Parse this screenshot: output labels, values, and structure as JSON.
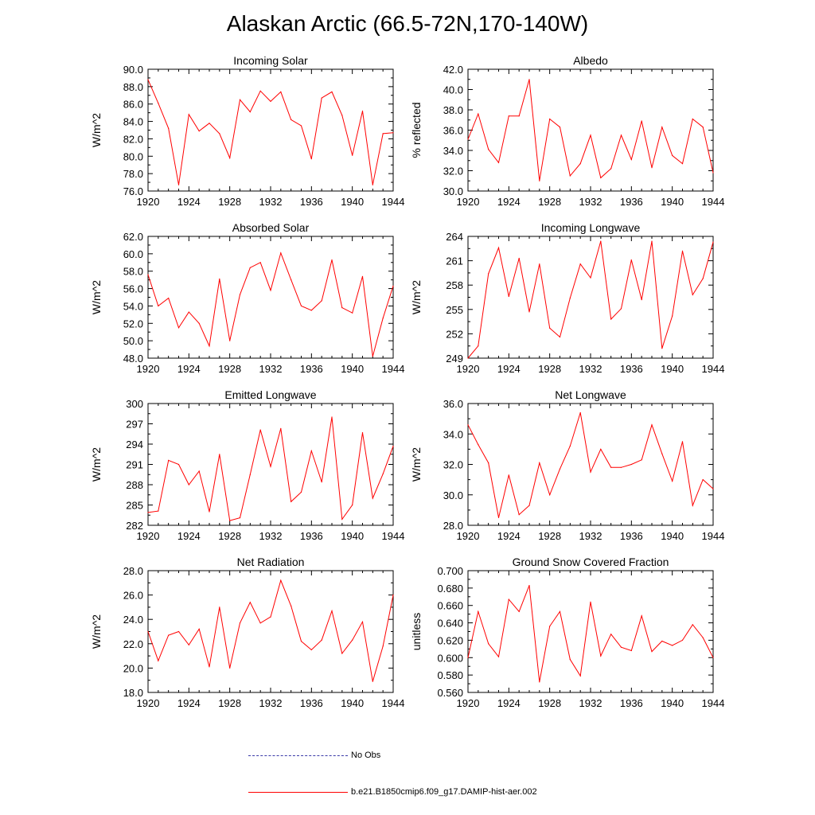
{
  "title": "Alaskan Arctic (66.5-72N,170-140W)",
  "colors": {
    "model": "#ff0000",
    "obs": "#3a3aa8",
    "axis": "#000000"
  },
  "legend": {
    "obs_label": "No Obs",
    "model_label": "b.e21.B1850cmip6.f09_g17.DAMIP-hist-aer.002"
  },
  "chart_data": [
    {
      "type": "line",
      "title": "Incoming Solar",
      "ylabel": "W/m^2",
      "xlim": [
        1920,
        1944
      ],
      "ylim": [
        76,
        90
      ],
      "xticks": [
        "1920",
        "1924",
        "1928",
        "1932",
        "1936",
        "1940",
        "1944"
      ],
      "yticks": [
        "76.0",
        "78.0",
        "80.0",
        "82.0",
        "84.0",
        "86.0",
        "88.0",
        "90.0"
      ],
      "x": [
        1920,
        1921,
        1922,
        1923,
        1924,
        1925,
        1926,
        1927,
        1928,
        1929,
        1930,
        1931,
        1932,
        1933,
        1934,
        1935,
        1936,
        1937,
        1938,
        1939,
        1940,
        1941,
        1942,
        1943,
        1944
      ],
      "series": [
        {
          "values": [
            88.8,
            86.1,
            83.2,
            76.7,
            84.8,
            82.9,
            83.8,
            82.6,
            79.8,
            86.5,
            85.1,
            87.5,
            86.3,
            87.4,
            84.2,
            83.5,
            79.7,
            86.7,
            87.4,
            84.7,
            80.1,
            85.2,
            76.7,
            82.6,
            82.7
          ]
        }
      ]
    },
    {
      "type": "line",
      "title": "Albedo",
      "ylabel": "% reflected",
      "xlim": [
        1920,
        1944
      ],
      "ylim": [
        30,
        42
      ],
      "xticks": [
        "1920",
        "1924",
        "1928",
        "1932",
        "1936",
        "1940",
        "1944"
      ],
      "yticks": [
        "30.0",
        "32.0",
        "34.0",
        "36.0",
        "38.0",
        "40.0",
        "42.0"
      ],
      "x": [
        1920,
        1921,
        1922,
        1923,
        1924,
        1925,
        1926,
        1927,
        1928,
        1929,
        1930,
        1931,
        1932,
        1933,
        1934,
        1935,
        1936,
        1937,
        1938,
        1939,
        1940,
        1941,
        1942,
        1943,
        1944
      ],
      "series": [
        {
          "values": [
            35.1,
            37.6,
            34.1,
            32.8,
            37.4,
            37.4,
            41.0,
            31.0,
            37.1,
            36.3,
            31.5,
            32.7,
            35.5,
            31.3,
            32.2,
            35.5,
            33.1,
            36.9,
            32.3,
            36.3,
            33.5,
            32.7,
            37.1,
            36.3,
            31.8
          ]
        }
      ]
    },
    {
      "type": "line",
      "title": "Absorbed Solar",
      "ylabel": "W/m^2",
      "xlim": [
        1920,
        1944
      ],
      "ylim": [
        48,
        62
      ],
      "xticks": [
        "1920",
        "1924",
        "1928",
        "1932",
        "1936",
        "1940",
        "1944"
      ],
      "yticks": [
        "48.0",
        "50.0",
        "52.0",
        "54.0",
        "56.0",
        "58.0",
        "60.0",
        "62.0"
      ],
      "x": [
        1920,
        1921,
        1922,
        1923,
        1924,
        1925,
        1926,
        1927,
        1928,
        1929,
        1930,
        1931,
        1932,
        1933,
        1934,
        1935,
        1936,
        1937,
        1938,
        1939,
        1940,
        1941,
        1942,
        1943,
        1944
      ],
      "series": [
        {
          "values": [
            57.6,
            54.0,
            54.9,
            51.5,
            53.3,
            52.0,
            49.4,
            57.1,
            50.0,
            55.3,
            58.4,
            59.0,
            55.8,
            60.1,
            57.0,
            54.0,
            53.5,
            54.6,
            59.3,
            53.8,
            53.2,
            57.4,
            48.2,
            52.6,
            56.3
          ]
        }
      ]
    },
    {
      "type": "line",
      "title": "Incoming Longwave",
      "ylabel": "W/m^2",
      "xlim": [
        1920,
        1944
      ],
      "ylim": [
        249,
        264
      ],
      "xticks": [
        "1920",
        "1924",
        "1928",
        "1932",
        "1936",
        "1940",
        "1944"
      ],
      "yticks": [
        "249",
        "252",
        "255",
        "258",
        "261",
        "264"
      ],
      "x": [
        1920,
        1921,
        1922,
        1923,
        1924,
        1925,
        1926,
        1927,
        1928,
        1929,
        1930,
        1931,
        1932,
        1933,
        1934,
        1935,
        1936,
        1937,
        1938,
        1939,
        1940,
        1941,
        1942,
        1943,
        1944
      ],
      "series": [
        {
          "values": [
            249.0,
            250.5,
            259.4,
            262.6,
            256.6,
            261.3,
            254.7,
            260.6,
            252.7,
            251.6,
            256.4,
            260.6,
            258.9,
            263.4,
            253.8,
            255.1,
            261.1,
            256.2,
            263.4,
            250.2,
            254.2,
            262.2,
            256.8,
            258.8,
            263.3
          ]
        }
      ]
    },
    {
      "type": "line",
      "title": "Emitted Longwave",
      "ylabel": "W/m^2",
      "xlim": [
        1920,
        1944
      ],
      "ylim": [
        282,
        300
      ],
      "xticks": [
        "1920",
        "1924",
        "1928",
        "1932",
        "1936",
        "1940",
        "1944"
      ],
      "yticks": [
        "282",
        "285",
        "288",
        "291",
        "294",
        "297",
        "300"
      ],
      "x": [
        1920,
        1921,
        1922,
        1923,
        1924,
        1925,
        1926,
        1927,
        1928,
        1929,
        1930,
        1931,
        1932,
        1933,
        1934,
        1935,
        1936,
        1937,
        1938,
        1939,
        1940,
        1941,
        1942,
        1943,
        1944
      ],
      "series": [
        {
          "values": [
            283.9,
            284.1,
            291.6,
            291.0,
            288.0,
            290.0,
            284.0,
            292.5,
            282.7,
            283.1,
            289.5,
            296.1,
            290.7,
            296.3,
            285.5,
            286.9,
            293.0,
            288.4,
            298.0,
            282.9,
            285.0,
            295.7,
            286.0,
            289.6,
            293.7
          ]
        }
      ]
    },
    {
      "type": "line",
      "title": "Net Longwave",
      "ylabel": "W/m^2",
      "xlim": [
        1920,
        1944
      ],
      "ylim": [
        28,
        36
      ],
      "xticks": [
        "1920",
        "1924",
        "1928",
        "1932",
        "1936",
        "1940",
        "1944"
      ],
      "yticks": [
        "28.0",
        "30.0",
        "32.0",
        "34.0",
        "36.0"
      ],
      "x": [
        1920,
        1921,
        1922,
        1923,
        1924,
        1925,
        1926,
        1927,
        1928,
        1929,
        1930,
        1931,
        1932,
        1933,
        1934,
        1935,
        1936,
        1937,
        1938,
        1939,
        1940,
        1941,
        1942,
        1943,
        1944
      ],
      "series": [
        {
          "values": [
            34.6,
            33.3,
            32.1,
            28.5,
            31.3,
            28.7,
            29.3,
            32.1,
            30.0,
            31.7,
            33.2,
            35.4,
            31.5,
            33.0,
            31.8,
            31.8,
            32.0,
            32.3,
            34.6,
            32.7,
            30.9,
            33.5,
            29.3,
            31.0,
            30.4
          ]
        }
      ]
    },
    {
      "type": "line",
      "title": "Net Radiation",
      "ylabel": "W/m^2",
      "xlim": [
        1920,
        1944
      ],
      "ylim": [
        18,
        28
      ],
      "xticks": [
        "1920",
        "1924",
        "1928",
        "1932",
        "1936",
        "1940",
        "1944"
      ],
      "yticks": [
        "18.0",
        "20.0",
        "22.0",
        "24.0",
        "26.0",
        "28.0"
      ],
      "x": [
        1920,
        1921,
        1922,
        1923,
        1924,
        1925,
        1926,
        1927,
        1928,
        1929,
        1930,
        1931,
        1932,
        1933,
        1934,
        1935,
        1936,
        1937,
        1938,
        1939,
        1940,
        1941,
        1942,
        1943,
        1944
      ],
      "series": [
        {
          "values": [
            23.0,
            20.6,
            22.7,
            23.0,
            21.9,
            23.2,
            20.1,
            25.0,
            20.0,
            23.7,
            25.4,
            23.7,
            24.2,
            27.2,
            25.1,
            22.2,
            21.5,
            22.3,
            24.7,
            21.2,
            22.3,
            23.8,
            18.9,
            21.8,
            26.0
          ]
        }
      ]
    },
    {
      "type": "line",
      "title": "Ground Snow Covered Fraction",
      "ylabel": "unitless",
      "xlim": [
        1920,
        1944
      ],
      "ylim": [
        0.56,
        0.7
      ],
      "xticks": [
        "1920",
        "1924",
        "1928",
        "1932",
        "1936",
        "1940",
        "1944"
      ],
      "yticks": [
        "0.560",
        "0.580",
        "0.600",
        "0.620",
        "0.640",
        "0.660",
        "0.680",
        "0.700"
      ],
      "x": [
        1920,
        1921,
        1922,
        1923,
        1924,
        1925,
        1926,
        1927,
        1928,
        1929,
        1930,
        1931,
        1932,
        1933,
        1934,
        1935,
        1936,
        1937,
        1938,
        1939,
        1940,
        1941,
        1942,
        1943,
        1944
      ],
      "series": [
        {
          "values": [
            0.6,
            0.653,
            0.616,
            0.601,
            0.667,
            0.653,
            0.683,
            0.572,
            0.636,
            0.653,
            0.598,
            0.579,
            0.664,
            0.602,
            0.627,
            0.612,
            0.608,
            0.648,
            0.607,
            0.619,
            0.614,
            0.62,
            0.638,
            0.623,
            0.6
          ]
        }
      ]
    }
  ]
}
